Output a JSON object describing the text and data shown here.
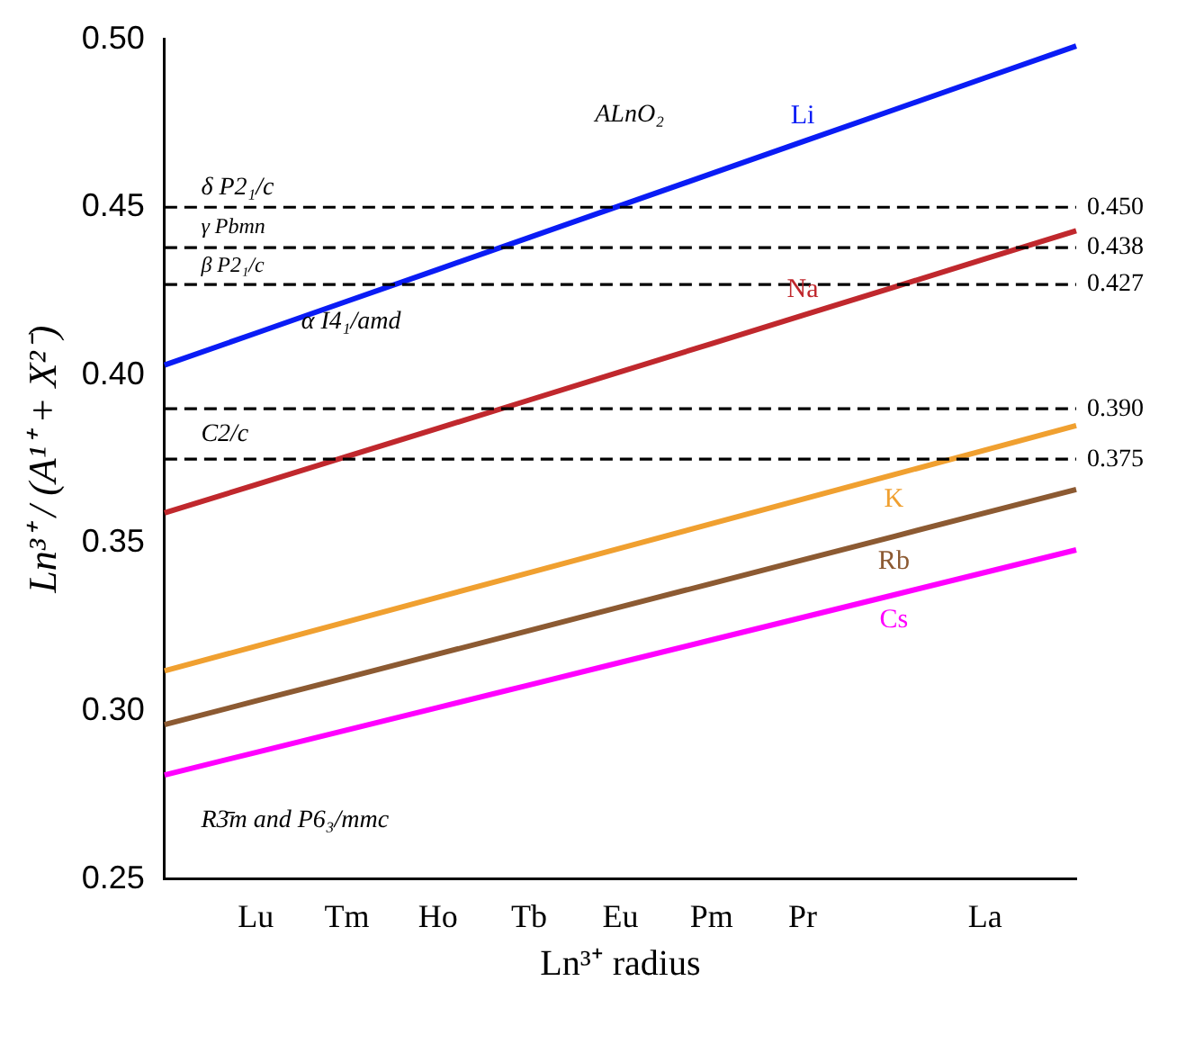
{
  "chart_data": {
    "type": "line",
    "categories": [
      null,
      "Lu",
      "Tm",
      "Ho",
      "Tb",
      "Eu",
      "Pm",
      "Pr",
      null,
      "La",
      null
    ],
    "xlabel": "Ln³⁺ radius",
    "ylabel": "Ln³⁺ / (A¹⁺ + X²⁻)",
    "ylim": [
      0.25,
      0.5
    ],
    "yticks": [
      {
        "value": 0.25,
        "label": "0.25"
      },
      {
        "value": 0.3,
        "label": "0.30"
      },
      {
        "value": 0.35,
        "label": "0.35"
      },
      {
        "value": 0.4,
        "label": "0.40"
      },
      {
        "value": 0.45,
        "label": "0.45"
      },
      {
        "value": 0.5,
        "label": "0.50"
      }
    ],
    "series": [
      {
        "name": "Li",
        "color": "#0a1cf5",
        "values": [
          0.403,
          0.4125,
          0.422,
          0.4315,
          0.441,
          0.4505,
          0.46,
          0.4695,
          0.479,
          0.4885,
          0.498
        ]
      },
      {
        "name": "Na",
        "color": "#c0282d",
        "values": [
          0.359,
          0.3674,
          0.3758,
          0.3842,
          0.3926,
          0.401,
          0.4094,
          0.4178,
          0.4262,
          0.4346,
          0.443
        ]
      },
      {
        "name": "K",
        "color": "#f0a030",
        "values": [
          0.312,
          0.3193,
          0.3266,
          0.3339,
          0.3412,
          0.3485,
          0.3558,
          0.3631,
          0.3704,
          0.3777,
          0.385
        ]
      },
      {
        "name": "Rb",
        "color": "#8c5a32",
        "values": [
          0.296,
          0.303,
          0.31,
          0.317,
          0.324,
          0.331,
          0.338,
          0.345,
          0.352,
          0.359,
          0.366
        ]
      },
      {
        "name": "Cs",
        "color": "#ff00ff",
        "values": [
          0.281,
          0.2877,
          0.2944,
          0.3011,
          0.3078,
          0.3145,
          0.3212,
          0.3279,
          0.3346,
          0.3413,
          0.348
        ]
      }
    ],
    "ref_lines": [
      {
        "axis": "y",
        "value": 0.45,
        "label": "0.450",
        "color": "#000000",
        "line_style": "dashed"
      },
      {
        "axis": "y",
        "value": 0.438,
        "label": "0.438",
        "color": "#000000",
        "line_style": "dashed"
      },
      {
        "axis": "y",
        "value": 0.427,
        "label": "0.427",
        "color": "#000000",
        "line_style": "dashed"
      },
      {
        "axis": "y",
        "value": 0.39,
        "label": "0.390",
        "color": "#000000",
        "line_style": "dashed"
      },
      {
        "axis": "y",
        "value": 0.375,
        "label": "0.375",
        "color": "#000000",
        "line_style": "dashed"
      }
    ],
    "annotations": [
      "ALnO₂",
      "δ P2₁/c",
      "γ Pbmn",
      "β P2₁/c",
      "α I4₁/amd",
      "C2/c",
      "R3̄m and P6₃/mmc"
    ],
    "grid": false,
    "legend": false,
    "marker": "none",
    "line_style": "solid"
  }
}
